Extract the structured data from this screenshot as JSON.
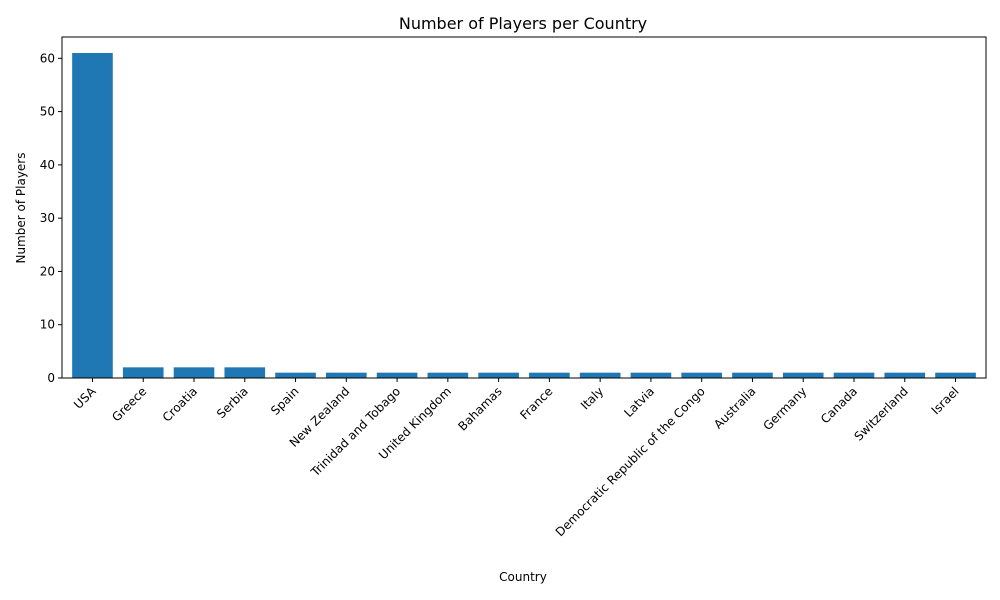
{
  "chart_data": {
    "type": "bar",
    "title": "Number of Players per Country",
    "xlabel": "Country",
    "ylabel": "Number of Players",
    "categories": [
      "USA",
      "Greece",
      "Croatia",
      "Serbia",
      "Spain",
      "New Zealand",
      "Trinidad and Tobago",
      "United Kingdom",
      "Bahamas",
      "France",
      "Italy",
      "Latvia",
      "Democratic Republic of the Congo",
      "Australia",
      "Germany",
      "Canada",
      "Switzerland",
      "Israel"
    ],
    "values": [
      61,
      2,
      2,
      2,
      1,
      1,
      1,
      1,
      1,
      1,
      1,
      1,
      1,
      1,
      1,
      1,
      1,
      1
    ],
    "ylim": [
      0,
      64
    ],
    "yticks": [
      0,
      10,
      20,
      30,
      40,
      50,
      60
    ],
    "xtick_rotation_deg": 45,
    "grid": false,
    "legend": "none",
    "bar_color": "#1f77b4"
  }
}
